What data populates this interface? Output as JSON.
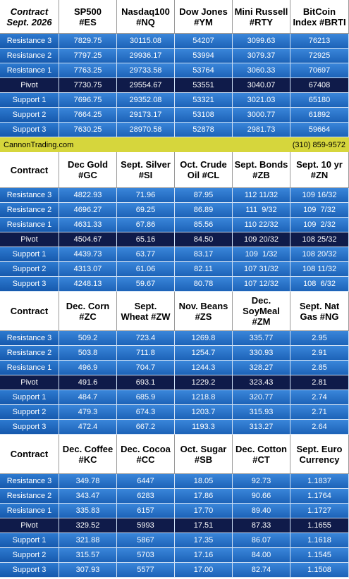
{
  "sections": [
    {
      "corner": [
        "Contract",
        "Sept. 2026"
      ],
      "columns": [
        [
          "SP500",
          "#ES"
        ],
        [
          "Nasdaq100",
          "#NQ"
        ],
        [
          "Dow Jones",
          "#YM"
        ],
        [
          "Mini Russell",
          "#RTY"
        ],
        [
          "BitCoin",
          "Index #BRTI"
        ]
      ],
      "rows": [
        {
          "label": "Resistance 3",
          "values": [
            "7829.75",
            "30115.08",
            "54207",
            "3099.63",
            "76213"
          ]
        },
        {
          "label": "Resistance 2",
          "values": [
            "7797.25",
            "29936.17",
            "53994",
            "3079.37",
            "72925"
          ]
        },
        {
          "label": "Resistance 1",
          "values": [
            "7763.25",
            "29733.58",
            "53764",
            "3060.33",
            "70697"
          ]
        },
        {
          "label": "Pivot",
          "values": [
            "7730.75",
            "29554.67",
            "53551",
            "3040.07",
            "67408"
          ]
        },
        {
          "label": "Support 1",
          "values": [
            "7696.75",
            "29352.08",
            "53321",
            "3021.03",
            "65180"
          ]
        },
        {
          "label": "Support 2",
          "values": [
            "7664.25",
            "29173.17",
            "53108",
            "3000.77",
            "61892"
          ]
        },
        {
          "label": "Support 3",
          "values": [
            "7630.25",
            "28970.58",
            "52878",
            "2981.73",
            "59664"
          ]
        }
      ]
    },
    {
      "corner": [
        "Contract"
      ],
      "columns": [
        [
          "Dec Gold",
          "#GC"
        ],
        [
          "Sept. Silver",
          "#SI"
        ],
        [
          "Oct. Crude",
          "Oil #CL"
        ],
        [
          "Sept. Bonds",
          "#ZB"
        ],
        [
          "Sept. 10 yr",
          "#ZN"
        ]
      ],
      "rows": [
        {
          "label": "Resistance 3",
          "values": [
            "4822.93",
            "71.96",
            "87.95",
            "112 11/32",
            "109 16/32"
          ]
        },
        {
          "label": "Resistance 2",
          "values": [
            "4696.27",
            "69.25",
            "86.89",
            "111  9/32",
            "109  7/32"
          ]
        },
        {
          "label": "Resistance 1",
          "values": [
            "4631.33",
            "67.86",
            "85.56",
            "110 22/32",
            "109  2/32"
          ]
        },
        {
          "label": "Pivot",
          "values": [
            "4504.67",
            "65.16",
            "84.50",
            "109 20/32",
            "108 25/32"
          ]
        },
        {
          "label": "Support 1",
          "values": [
            "4439.73",
            "63.77",
            "83.17",
            "109  1/32",
            "108 20/32"
          ]
        },
        {
          "label": "Support 2",
          "values": [
            "4313.07",
            "61.06",
            "82.11",
            "107 31/32",
            "108 11/32"
          ]
        },
        {
          "label": "Support 3",
          "values": [
            "4248.13",
            "59.67",
            "80.78",
            "107 12/32",
            "108  6/32"
          ]
        }
      ]
    },
    {
      "corner": [
        "Contract"
      ],
      "columns": [
        [
          "Dec. Corn",
          "#ZC"
        ],
        [
          "Sept.",
          "Wheat #ZW"
        ],
        [
          "Nov. Beans",
          "#ZS"
        ],
        [
          "Dec.",
          "SoyMeal",
          "#ZM"
        ],
        [
          "Sept. Nat",
          "Gas #NG"
        ]
      ],
      "rows": [
        {
          "label": "Resistance 3",
          "values": [
            "509.2",
            "723.4",
            "1269.8",
            "335.77",
            "2.95"
          ]
        },
        {
          "label": "Resistance 2",
          "values": [
            "503.8",
            "711.8",
            "1254.7",
            "330.93",
            "2.91"
          ]
        },
        {
          "label": "Resistance 1",
          "values": [
            "496.9",
            "704.7",
            "1244.3",
            "328.27",
            "2.85"
          ]
        },
        {
          "label": "Pivot",
          "values": [
            "491.6",
            "693.1",
            "1229.2",
            "323.43",
            "2.81"
          ]
        },
        {
          "label": "Support 1",
          "values": [
            "484.7",
            "685.9",
            "1218.8",
            "320.77",
            "2.74"
          ]
        },
        {
          "label": "Support 2",
          "values": [
            "479.3",
            "674.3",
            "1203.7",
            "315.93",
            "2.71"
          ]
        },
        {
          "label": "Support 3",
          "values": [
            "472.4",
            "667.2",
            "1193.3",
            "313.27",
            "2.64"
          ]
        }
      ]
    },
    {
      "corner": [
        "Contract"
      ],
      "columns": [
        [
          "Dec. Coffee",
          "#KC"
        ],
        [
          "Dec. Cocoa",
          "#CC"
        ],
        [
          "Oct. Sugar",
          "#SB"
        ],
        [
          "Dec. Cotton",
          "#CT"
        ],
        [
          "Sept. Euro",
          "Currency"
        ]
      ],
      "rows": [
        {
          "label": "Resistance 3",
          "values": [
            "349.78",
            "6447",
            "18.05",
            "92.73",
            "1.1837"
          ]
        },
        {
          "label": "Resistance 2",
          "values": [
            "343.47",
            "6283",
            "17.86",
            "90.66",
            "1.1764"
          ]
        },
        {
          "label": "Resistance 1",
          "values": [
            "335.83",
            "6157",
            "17.70",
            "89.40",
            "1.1727"
          ]
        },
        {
          "label": "Pivot",
          "values": [
            "329.52",
            "5993",
            "17.51",
            "87.33",
            "1.1655"
          ]
        },
        {
          "label": "Support 1",
          "values": [
            "321.88",
            "5867",
            "17.35",
            "86.07",
            "1.1618"
          ]
        },
        {
          "label": "Support 2",
          "values": [
            "315.57",
            "5703",
            "17.16",
            "84.00",
            "1.1545"
          ]
        },
        {
          "label": "Support 3",
          "values": [
            "307.93",
            "5577",
            "17.00",
            "82.74",
            "1.1508"
          ]
        }
      ]
    }
  ],
  "banner": {
    "left": "CannonTrading.com",
    "right": "(310) 859-9572"
  }
}
